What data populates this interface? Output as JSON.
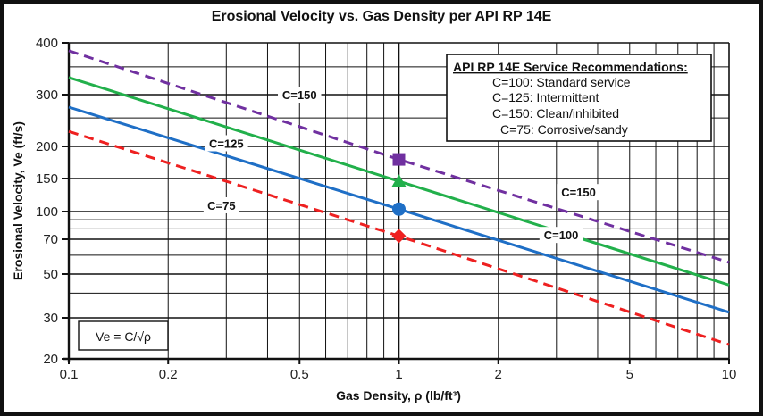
{
  "chart_data": {
    "type": "line",
    "title": "Erosional Velocity vs. Gas Density per API RP 14E",
    "xlabel": "Gas Density, ρ (lb/ft³)",
    "ylabel": "Erosional Velocity, Ve (ft/s)",
    "x_scale": "log",
    "y_scale": "log",
    "xlim": [
      0.1,
      10
    ],
    "ylim": [
      20,
      400
    ],
    "grid": true,
    "x_ticks": [
      "0.1",
      "0.2",
      "0.5",
      "1",
      "2",
      "5",
      "10"
    ],
    "y_ticks": [
      "20",
      "30",
      "50",
      "70",
      "100",
      "150",
      "200",
      "300",
      "400"
    ],
    "series": [
      {
        "color": "#7030a0",
        "style": "dashed",
        "marker": "square",
        "x": [
          0.1,
          1,
          10
        ],
        "y": [
          383,
          178,
          56
        ],
        "marker_at": [
          1,
          178
        ]
      },
      {
        "color": "#22b04b",
        "style": "solid",
        "marker": "triangle",
        "x": [
          0.1,
          1,
          10
        ],
        "y": [
          330,
          145,
          44
        ],
        "marker_at": [
          1,
          145
        ]
      },
      {
        "color": "#1f6fc6",
        "style": "solid",
        "marker": "circle",
        "x": [
          0.1,
          1,
          10
        ],
        "y": [
          272,
          103,
          32
        ],
        "marker_at": [
          1,
          103
        ]
      },
      {
        "color": "#ee2020",
        "style": "dashed",
        "marker": "diamond",
        "x": [
          0.1,
          1,
          10
        ],
        "y": [
          225,
          73,
          23
        ],
        "marker_at": [
          1,
          73
        ]
      }
    ],
    "annotations": [
      {
        "text": "C=150",
        "x": 0.5,
        "y": 300
      },
      {
        "text": "C=125",
        "x": 0.3,
        "y": 205
      },
      {
        "text": "C=75",
        "x": 0.29,
        "y": 108
      },
      {
        "text": "C=150",
        "x": 3.5,
        "y": 127
      },
      {
        "text": "C=100",
        "x": 3.1,
        "y": 74
      }
    ],
    "legend": {
      "placement": "top-right",
      "title": "API RP 14E Service Recommendations:",
      "entries": [
        "C=100: Standard service",
        "C=125: Intermittent",
        "C=150: Clean/inhibited",
        "C=75: Corrosive/sandy"
      ]
    },
    "formula": "Ve = C/√ρ"
  }
}
